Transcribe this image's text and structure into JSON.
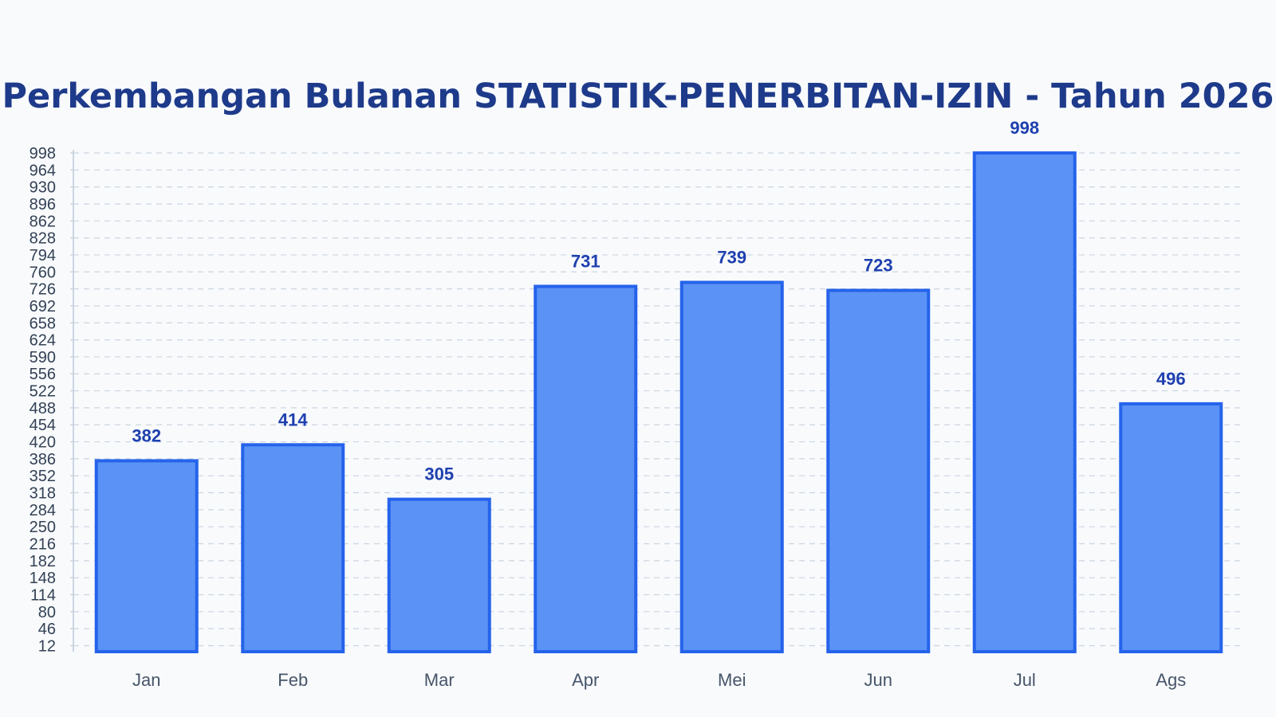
{
  "chart_data": {
    "type": "bar",
    "title": "Perkembangan Bulanan STATISTIK-PENERBITAN-IZIN - Tahun 2026",
    "categories": [
      "Jan",
      "Feb",
      "Mar",
      "Apr",
      "Mei",
      "Jun",
      "Jul",
      "Ags"
    ],
    "values": [
      382,
      414,
      305,
      731,
      739,
      723,
      998,
      496
    ],
    "yticks": [
      12,
      46,
      80,
      114,
      148,
      182,
      216,
      250,
      284,
      318,
      352,
      386,
      420,
      454,
      488,
      522,
      556,
      590,
      624,
      658,
      692,
      726,
      760,
      794,
      828,
      862,
      896,
      930,
      964,
      998
    ],
    "ylim": [
      0,
      998
    ],
    "xlabel": "",
    "ylabel": "",
    "grid": true,
    "legend": "none",
    "data_labels": true,
    "colors": {
      "bar_fill": "#5a93f5",
      "bar_stroke": "#2563eb",
      "label": "#1e40af",
      "title": "#1e3a8a"
    }
  }
}
